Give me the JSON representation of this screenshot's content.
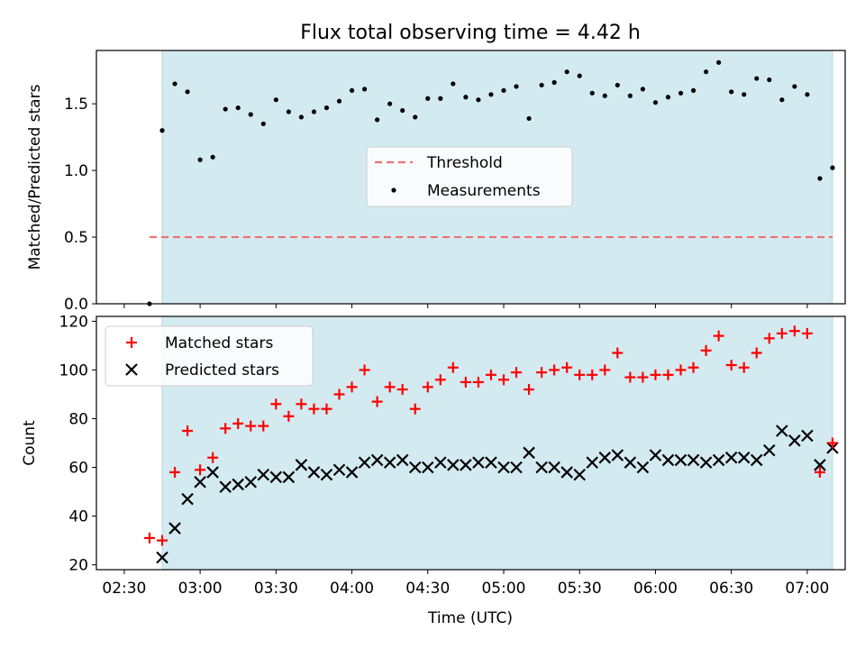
{
  "title": "Flux total observing time = 4.42 h",
  "xlabel": "Time (UTC)",
  "x_tick_labels": [
    "02:30",
    "03:00",
    "03:30",
    "04:00",
    "04:30",
    "05:00",
    "05:30",
    "06:00",
    "06:30",
    "07:00"
  ],
  "colors": {
    "observing_span": "#d3eaf0",
    "threshold": "#f07070",
    "measurements": "#000000",
    "matched": "#ff0000",
    "predicted": "#000000"
  },
  "chart_data": [
    {
      "type": "scatter",
      "ylabel": "Matched/Predicted stars",
      "ylim": [
        0,
        1.9
      ],
      "y_ticks": [
        "0.0",
        "0.5",
        "1.0",
        "1.5"
      ],
      "legend": [
        "Threshold",
        "Measurements"
      ],
      "legend_position": "center",
      "shaded_span": [
        "02:45",
        "07:10"
      ],
      "threshold": {
        "name": "Threshold",
        "value": 0.5,
        "x_range": [
          "02:40",
          "07:10"
        ]
      },
      "series": [
        {
          "name": "Measurements",
          "x": [
            "02:40",
            "02:45",
            "02:50",
            "02:55",
            "03:00",
            "03:05",
            "03:10",
            "03:15",
            "03:20",
            "03:25",
            "03:30",
            "03:35",
            "03:40",
            "03:45",
            "03:50",
            "03:55",
            "04:00",
            "04:05",
            "04:10",
            "04:15",
            "04:20",
            "04:25",
            "04:30",
            "04:35",
            "04:40",
            "04:45",
            "04:50",
            "04:55",
            "05:00",
            "05:05",
            "05:10",
            "05:15",
            "05:20",
            "05:25",
            "05:30",
            "05:35",
            "05:40",
            "05:45",
            "05:50",
            "05:55",
            "06:00",
            "06:05",
            "06:10",
            "06:15",
            "06:20",
            "06:25",
            "06:30",
            "06:35",
            "06:40",
            "06:45",
            "06:50",
            "06:55",
            "07:00",
            "07:05",
            "07:10"
          ],
          "y": [
            0.0,
            1.3,
            1.65,
            1.59,
            1.08,
            1.1,
            1.46,
            1.47,
            1.42,
            1.35,
            1.53,
            1.44,
            1.4,
            1.44,
            1.47,
            1.52,
            1.6,
            1.61,
            1.38,
            1.5,
            1.45,
            1.4,
            1.54,
            1.54,
            1.65,
            1.55,
            1.53,
            1.57,
            1.6,
            1.63,
            1.39,
            1.64,
            1.66,
            1.74,
            1.71,
            1.58,
            1.56,
            1.64,
            1.56,
            1.61,
            1.51,
            1.55,
            1.58,
            1.6,
            1.74,
            1.81,
            1.59,
            1.57,
            1.69,
            1.68,
            1.53,
            1.63,
            1.57,
            0.94,
            1.02
          ]
        }
      ]
    },
    {
      "type": "scatter",
      "ylabel": "Count",
      "ylim": [
        18,
        122
      ],
      "y_ticks": [
        "20",
        "40",
        "60",
        "80",
        "100",
        "120"
      ],
      "legend": [
        "Matched stars",
        "Predicted stars"
      ],
      "legend_position": "upper left",
      "shaded_span": [
        "02:45",
        "07:10"
      ],
      "series": [
        {
          "name": "Matched stars",
          "marker": "+",
          "x": [
            "02:40",
            "02:45",
            "02:50",
            "02:55",
            "03:00",
            "03:05",
            "03:10",
            "03:15",
            "03:20",
            "03:25",
            "03:30",
            "03:35",
            "03:40",
            "03:45",
            "03:50",
            "03:55",
            "04:00",
            "04:05",
            "04:10",
            "04:15",
            "04:20",
            "04:25",
            "04:30",
            "04:35",
            "04:40",
            "04:45",
            "04:50",
            "04:55",
            "05:00",
            "05:05",
            "05:10",
            "05:15",
            "05:20",
            "05:25",
            "05:30",
            "05:35",
            "05:40",
            "05:45",
            "05:50",
            "05:55",
            "06:00",
            "06:05",
            "06:10",
            "06:15",
            "06:20",
            "06:25",
            "06:30",
            "06:35",
            "06:40",
            "06:45",
            "06:50",
            "06:55",
            "07:00",
            "07:05",
            "07:10"
          ],
          "y": [
            31,
            30,
            58,
            75,
            59,
            64,
            76,
            78,
            77,
            77,
            86,
            81,
            86,
            84,
            84,
            90,
            93,
            100,
            87,
            93,
            92,
            84,
            93,
            96,
            101,
            95,
            95,
            98,
            96,
            99,
            92,
            99,
            100,
            101,
            98,
            98,
            100,
            107,
            97,
            97,
            98,
            98,
            100,
            101,
            108,
            114,
            102,
            101,
            107,
            113,
            115,
            116,
            115,
            58,
            70
          ]
        },
        {
          "name": "Predicted stars",
          "marker": "x",
          "x": [
            "02:45",
            "02:50",
            "02:55",
            "03:00",
            "03:05",
            "03:10",
            "03:15",
            "03:20",
            "03:25",
            "03:30",
            "03:35",
            "03:40",
            "03:45",
            "03:50",
            "03:55",
            "04:00",
            "04:05",
            "04:10",
            "04:15",
            "04:20",
            "04:25",
            "04:30",
            "04:35",
            "04:40",
            "04:45",
            "04:50",
            "04:55",
            "05:00",
            "05:05",
            "05:10",
            "05:15",
            "05:20",
            "05:25",
            "05:30",
            "05:35",
            "05:40",
            "05:45",
            "05:50",
            "05:55",
            "06:00",
            "06:05",
            "06:10",
            "06:15",
            "06:20",
            "06:25",
            "06:30",
            "06:35",
            "06:40",
            "06:45",
            "06:50",
            "06:55",
            "07:00",
            "07:05",
            "07:10"
          ],
          "y": [
            23,
            35,
            47,
            54,
            58,
            52,
            53,
            54,
            57,
            56,
            56,
            61,
            58,
            57,
            59,
            58,
            62,
            63,
            62,
            63,
            60,
            60,
            62,
            61,
            61,
            62,
            62,
            60,
            60,
            66,
            60,
            60,
            58,
            57,
            62,
            64,
            65,
            62,
            60,
            65,
            63,
            63,
            63,
            62,
            63,
            64,
            64,
            63,
            67,
            75,
            71,
            73,
            61,
            68
          ]
        }
      ]
    }
  ]
}
